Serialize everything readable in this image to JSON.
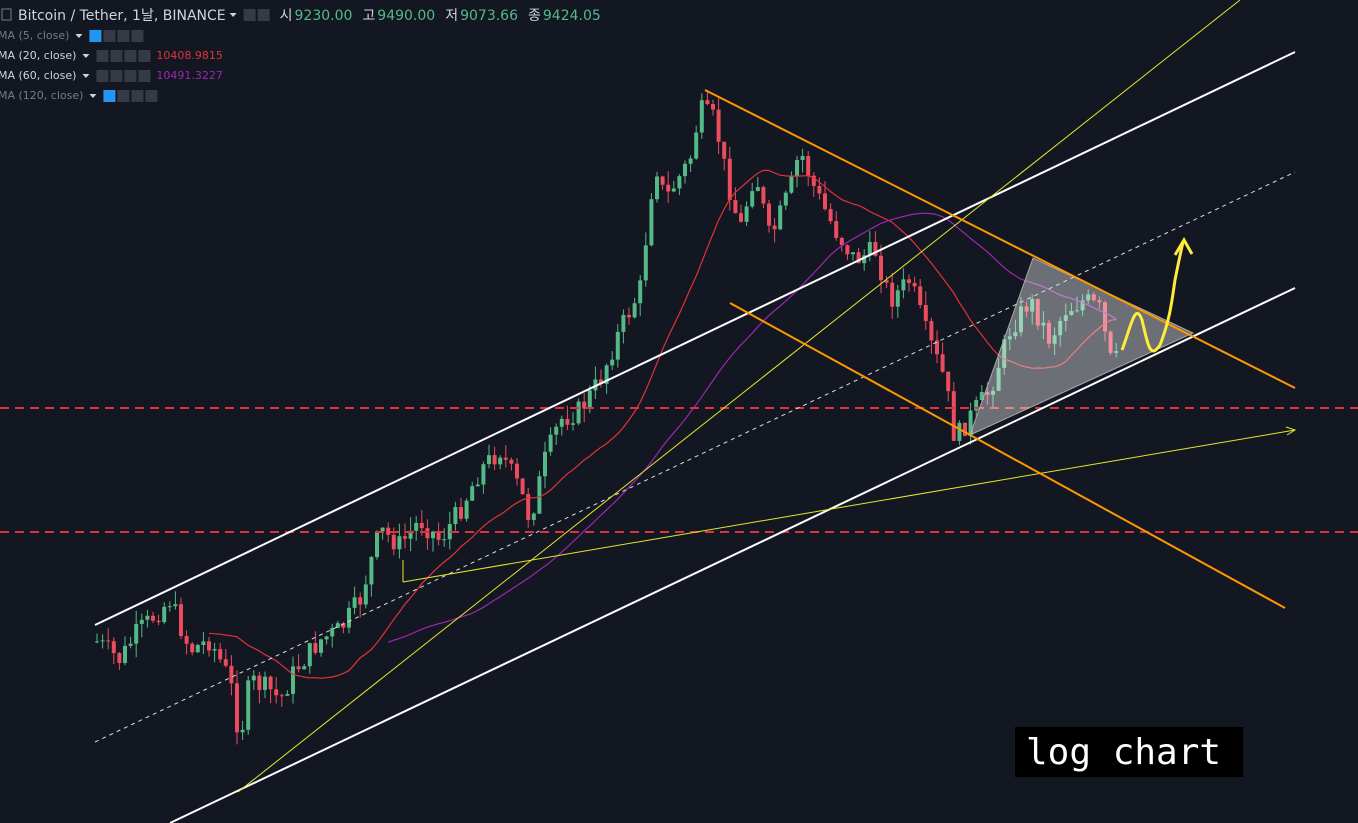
{
  "header": {
    "title": "Bitcoin / Tether, 1날, BINANCE",
    "ohlc": [
      {
        "label": "시",
        "value": "9230.00"
      },
      {
        "label": "고",
        "value": "9490.00"
      },
      {
        "label": "저",
        "value": "9073.66"
      },
      {
        "label": "종",
        "value": "9424.05"
      }
    ]
  },
  "indicators": [
    {
      "name": "MA (5, close)"
    },
    {
      "name": "MA (20, close)",
      "value": "10408.9815"
    },
    {
      "name": "MA (60, close)",
      "value": "10491.3227"
    },
    {
      "name": "MA (120, close)"
    }
  ],
  "annotation": "log chart"
}
